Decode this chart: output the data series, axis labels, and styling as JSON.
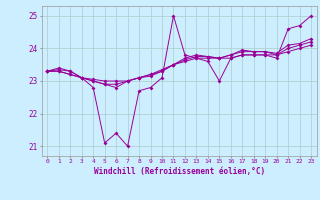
{
  "xlabel": "Windchill (Refroidissement éolien,°C)",
  "x": [
    0,
    1,
    2,
    3,
    4,
    5,
    6,
    7,
    8,
    9,
    10,
    11,
    12,
    13,
    14,
    15,
    16,
    17,
    18,
    19,
    20,
    21,
    22,
    23
  ],
  "line1": [
    23.3,
    23.4,
    23.3,
    23.1,
    22.8,
    21.1,
    21.4,
    21.0,
    22.7,
    22.8,
    23.1,
    25.0,
    23.8,
    23.7,
    23.6,
    23.0,
    23.7,
    23.8,
    23.8,
    23.8,
    23.7,
    24.6,
    24.7,
    25.0
  ],
  "line2": [
    23.3,
    23.3,
    23.2,
    23.1,
    23.0,
    22.9,
    22.8,
    23.0,
    23.1,
    23.2,
    23.3,
    23.5,
    23.6,
    23.7,
    23.7,
    23.7,
    23.7,
    23.8,
    23.8,
    23.8,
    23.8,
    23.9,
    24.0,
    24.1
  ],
  "line3": [
    23.3,
    23.3,
    23.2,
    23.1,
    23.0,
    22.9,
    22.9,
    23.0,
    23.1,
    23.2,
    23.35,
    23.5,
    23.65,
    23.75,
    23.75,
    23.7,
    23.8,
    23.9,
    23.9,
    23.9,
    23.8,
    24.0,
    24.1,
    24.2
  ],
  "line4": [
    23.3,
    23.35,
    23.3,
    23.1,
    23.05,
    23.0,
    23.0,
    23.0,
    23.1,
    23.15,
    23.3,
    23.5,
    23.7,
    23.8,
    23.75,
    23.7,
    23.8,
    23.95,
    23.9,
    23.9,
    23.85,
    24.1,
    24.15,
    24.3
  ],
  "line_color": "#990099",
  "bg_color": "#cceeff",
  "grid_color": "#aacccc",
  "ylim": [
    20.7,
    25.3
  ],
  "xlim": [
    -0.5,
    23.5
  ]
}
